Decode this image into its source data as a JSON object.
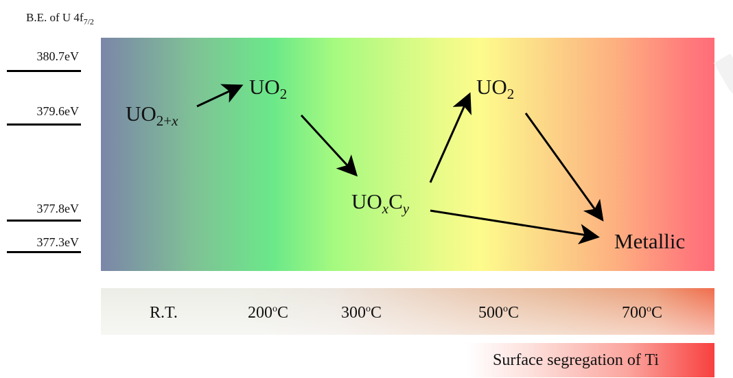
{
  "axis": {
    "title_main": "B.E. of U 4f",
    "title_sub": "7/2"
  },
  "energy_levels": [
    {
      "label": "380.7eV"
    },
    {
      "label": "379.6eV"
    },
    {
      "label": "377.8eV"
    },
    {
      "label": "377.3eV"
    }
  ],
  "species": {
    "uo2x": {
      "base": "UO",
      "sub_num": "2+",
      "sub_italic": "x"
    },
    "uo2_a": {
      "base": "UO",
      "sub": "2"
    },
    "uoxcy": {
      "u": "UO",
      "x": "x",
      "c": "C",
      "y": "y"
    },
    "uo2_b": {
      "base": "UO",
      "sub": "2"
    },
    "metallic": "Metallic"
  },
  "temperatures": [
    {
      "label": "R.T.",
      "sup": ""
    },
    {
      "label": "200",
      "sup": "o",
      "unit": "C"
    },
    {
      "label": "300",
      "sup": "o",
      "unit": "C"
    },
    {
      "label": "500",
      "sup": "o",
      "unit": "C"
    },
    {
      "label": "700",
      "sup": "o",
      "unit": "C"
    }
  ],
  "segregation_label": "Surface segregation of Ti",
  "colors": {
    "cool": "#7b86a8",
    "green": "#6be889",
    "yellow": "#fdfb8c",
    "hot": "#ff6c78",
    "arrow": "#000000"
  }
}
